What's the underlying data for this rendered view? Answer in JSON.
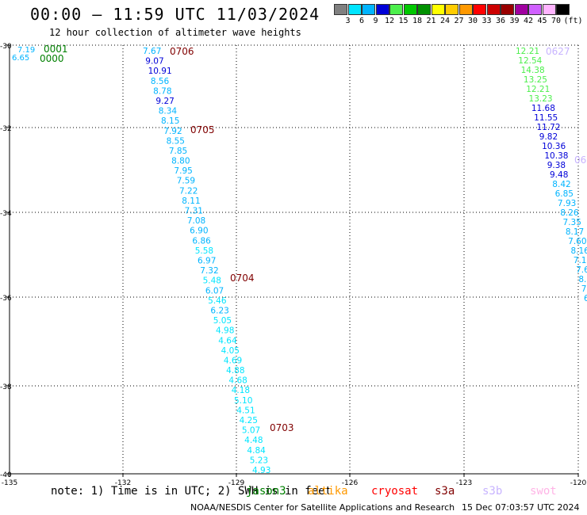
{
  "title": "00:00 – 11:59 UTC 11/03/2024",
  "subtitle": "12 hour collection of altimeter wave heights",
  "color_scale": {
    "unit": "(ft)",
    "bins": [
      {
        "label": "",
        "color": "#808080"
      },
      {
        "label": "3",
        "color": "#00e5ff"
      },
      {
        "label": "6",
        "color": "#00b4ff"
      },
      {
        "label": "9",
        "color": "#0000d8"
      },
      {
        "label": "12",
        "color": "#4cef4c"
      },
      {
        "label": "15",
        "color": "#00c800"
      },
      {
        "label": "18",
        "color": "#009000"
      },
      {
        "label": "21",
        "color": "#ffff00"
      },
      {
        "label": "24",
        "color": "#ffcc00"
      },
      {
        "label": "27",
        "color": "#ff9900"
      },
      {
        "label": "30",
        "color": "#ff0000"
      },
      {
        "label": "33",
        "color": "#cc0000"
      },
      {
        "label": "36",
        "color": "#990000"
      },
      {
        "label": "39",
        "color": "#a000a0"
      },
      {
        "label": "42",
        "color": "#d060ff"
      },
      {
        "label": "45",
        "color": "#ffb4ff"
      },
      {
        "label": "70",
        "color": "#000000"
      }
    ]
  },
  "map_data": {
    "lat_labels": [
      "-30",
      "-32",
      "-34",
      "-36",
      "-38",
      "-40"
    ],
    "lon_labels": [
      "-135",
      "-132",
      "-129",
      "-126",
      "-123",
      "-120"
    ],
    "tracks": [
      {
        "time_label": "0001",
        "time_color": "#008000",
        "points": [
          {
            "v": "7.19",
            "c": "#00b4ff"
          },
          {
            "v": "6.65",
            "c": "#00b4ff"
          }
        ]
      },
      {
        "time_label": "0000",
        "time_color": "#008000",
        "points": []
      },
      {
        "time_label": "0706",
        "time_color": "#800000",
        "points": [
          {
            "v": "7.67",
            "c": "#00b4ff"
          },
          {
            "v": "9.07",
            "c": "#0000d8"
          },
          {
            "v": "10.91",
            "c": "#0000d8"
          },
          {
            "v": "8.56",
            "c": "#00b4ff"
          },
          {
            "v": "8.78",
            "c": "#00b4ff"
          },
          {
            "v": "9.27",
            "c": "#0000d8"
          },
          {
            "v": "8.34",
            "c": "#00b4ff"
          },
          {
            "v": "8.15",
            "c": "#00b4ff"
          }
        ]
      },
      {
        "time_label": "0705",
        "time_color": "#800000",
        "points": [
          {
            "v": "7.92",
            "c": "#00b4ff"
          },
          {
            "v": "8.55",
            "c": "#00b4ff"
          },
          {
            "v": "7.85",
            "c": "#00b4ff"
          },
          {
            "v": "8.80",
            "c": "#00b4ff"
          },
          {
            "v": "7.95",
            "c": "#00b4ff"
          },
          {
            "v": "7.59",
            "c": "#00b4ff"
          },
          {
            "v": "7.22",
            "c": "#00b4ff"
          },
          {
            "v": "8.11",
            "c": "#00b4ff"
          },
          {
            "v": "7.31",
            "c": "#00b4ff"
          },
          {
            "v": "7.08",
            "c": "#00b4ff"
          },
          {
            "v": "6.90",
            "c": "#00b4ff"
          },
          {
            "v": "6.86",
            "c": "#00b4ff"
          },
          {
            "v": "5.58",
            "c": "#00e5ff"
          },
          {
            "v": "6.97",
            "c": "#00b4ff"
          },
          {
            "v": "7.32",
            "c": "#00b4ff"
          }
        ]
      },
      {
        "time_label": "0704",
        "time_color": "#800000",
        "points": [
          {
            "v": "5.48",
            "c": "#00e5ff"
          },
          {
            "v": "6.07",
            "c": "#00b4ff"
          },
          {
            "v": "5.46",
            "c": "#00e5ff"
          },
          {
            "v": "6.23",
            "c": "#00b4ff"
          },
          {
            "v": "5.05",
            "c": "#00e5ff"
          },
          {
            "v": "4.98",
            "c": "#00e5ff"
          },
          {
            "v": "4.64",
            "c": "#00e5ff"
          },
          {
            "v": "4.05",
            "c": "#00e5ff"
          },
          {
            "v": "4.69",
            "c": "#00e5ff"
          },
          {
            "v": "4.88",
            "c": "#00e5ff"
          },
          {
            "v": "4.68",
            "c": "#00e5ff"
          },
          {
            "v": "4.18",
            "c": "#00e5ff"
          },
          {
            "v": "5.10",
            "c": "#00e5ff"
          },
          {
            "v": "4.51",
            "c": "#00e5ff"
          },
          {
            "v": "4.25",
            "c": "#00e5ff"
          }
        ]
      },
      {
        "time_label": "0703",
        "time_color": "#800000",
        "points": [
          {
            "v": "5.07",
            "c": "#00e5ff"
          },
          {
            "v": "4.48",
            "c": "#00e5ff"
          },
          {
            "v": "4.84",
            "c": "#00e5ff"
          },
          {
            "v": "5.23",
            "c": "#00e5ff"
          },
          {
            "v": "4.93",
            "c": "#00e5ff"
          }
        ]
      },
      {
        "time_label": "0627",
        "time_color": "#c8b4ff",
        "points": [
          {
            "v": "12.21",
            "c": "#4cef4c"
          },
          {
            "v": "12.54",
            "c": "#4cef4c"
          },
          {
            "v": "14.38",
            "c": "#4cef4c"
          },
          {
            "v": "13.25",
            "c": "#4cef4c"
          },
          {
            "v": "12.21",
            "c": "#4cef4c"
          },
          {
            "v": "13.23",
            "c": "#4cef4c"
          },
          {
            "v": "11.68",
            "c": "#0000d8"
          },
          {
            "v": "11.55",
            "c": "#0000d8"
          },
          {
            "v": "11.72",
            "c": "#0000d8"
          },
          {
            "v": "9.82",
            "c": "#0000d8"
          },
          {
            "v": "10.36",
            "c": "#0000d8"
          },
          {
            "v": "10.38",
            "c": "#0000d8"
          },
          {
            "v": "9.38",
            "c": "#0000d8"
          },
          {
            "v": "9.48",
            "c": "#0000d8"
          },
          {
            "v": "8.42",
            "c": "#00b4ff"
          },
          {
            "v": "6.85",
            "c": "#00b4ff"
          },
          {
            "v": "7.93",
            "c": "#00b4ff"
          },
          {
            "v": "8.26",
            "c": "#00b4ff"
          },
          {
            "v": "7.35",
            "c": "#00b4ff"
          },
          {
            "v": "8.17",
            "c": "#00b4ff"
          },
          {
            "v": "7.60",
            "c": "#00b4ff"
          },
          {
            "v": "8.16",
            "c": "#00b4ff"
          },
          {
            "v": "7.1",
            "c": "#00b4ff"
          },
          {
            "v": "7.6",
            "c": "#00b4ff"
          },
          {
            "v": "8.",
            "c": "#00b4ff"
          },
          {
            "v": "7",
            "c": "#00b4ff"
          },
          {
            "v": "6",
            "c": "#00b4ff"
          }
        ]
      },
      {
        "time_label": "06",
        "time_color": "#c8b4ff",
        "points": []
      }
    ]
  },
  "footnote": "note: 1) Time is in UTC; 2) SWH is in feet",
  "satellites": [
    {
      "name": "jason3",
      "color": "#008000"
    },
    {
      "name": "altika",
      "color": "#ff9900"
    },
    {
      "name": "cryosat",
      "color": "#ff0000"
    },
    {
      "name": "s3a",
      "color": "#800000"
    },
    {
      "name": "s3b",
      "color": "#c8b4ff"
    },
    {
      "name": "swot",
      "color": "#ffb4e6"
    }
  ],
  "credit": "NOAA/NESDIS Center for Satellite Applications and Research",
  "timestamp": "15 Dec 07:03:57 UTC 2024"
}
